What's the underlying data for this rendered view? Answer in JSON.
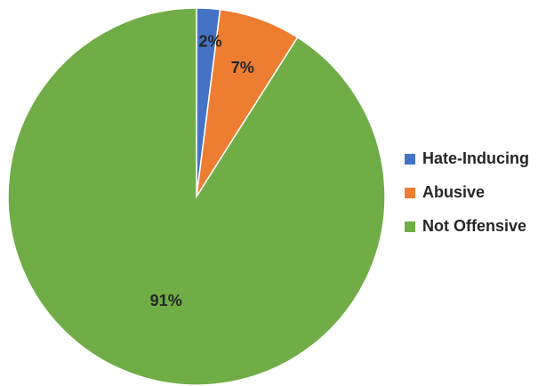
{
  "chart_data": {
    "type": "pie",
    "title": "",
    "categories": [
      "Hate-Inducing",
      "Abusive",
      "Not Offensive"
    ],
    "values": [
      2,
      7,
      91
    ],
    "labels": [
      "2%",
      "7%",
      "91%"
    ],
    "colors": [
      "#4472C4",
      "#ED7D31",
      "#70AD47"
    ],
    "start_angle_deg": 0,
    "direction": "clockwise",
    "legend_position": "right"
  }
}
